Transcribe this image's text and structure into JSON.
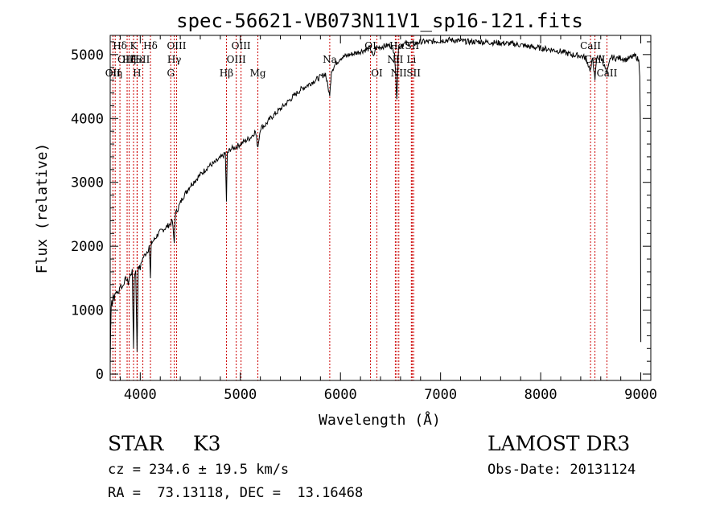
{
  "chart_data": {
    "type": "line",
    "title": "spec-56621-VB073N11V1_sp16-121.fits",
    "xlabel": "Wavelength (Å)",
    "ylabel": "Flux (relative)",
    "xlim": [
      3700,
      9100
    ],
    "ylim": [
      -100,
      5300
    ],
    "xticks": [
      4000,
      5000,
      6000,
      7000,
      8000,
      9000
    ],
    "yticks": [
      0,
      1000,
      2000,
      3000,
      4000,
      5000
    ],
    "xtick_labels": [
      "4000",
      "5000",
      "6000",
      "7000",
      "8000",
      "9000"
    ],
    "ytick_labels": [
      "0",
      "1000",
      "2000",
      "3000",
      "4000",
      "5000"
    ],
    "series": [
      {
        "name": "spectrum",
        "x": [
          3700,
          3705,
          3710,
          3715,
          3720,
          3730,
          3740,
          3760,
          3780,
          3800,
          3820,
          3840,
          3860,
          3880,
          3900,
          3920,
          3933,
          3940,
          3955,
          3968,
          3980,
          4000,
          4020,
          4040,
          4060,
          4080,
          4090,
          4102,
          4110,
          4140,
          4180,
          4220,
          4260,
          4300,
          4320,
          4340,
          4350,
          4380,
          4420,
          4460,
          4500,
          4560,
          4620,
          4680,
          4740,
          4800,
          4850,
          4861,
          4870,
          4900,
          4950,
          5000,
          5050,
          5100,
          5150,
          5175,
          5200,
          5250,
          5300,
          5400,
          5500,
          5600,
          5700,
          5800,
          5850,
          5893,
          5910,
          5950,
          6000,
          6100,
          6200,
          6300,
          6330,
          6350,
          6400,
          6500,
          6540,
          6563,
          6580,
          6600,
          6650,
          6700,
          6750,
          6800,
          6900,
          7000,
          7100,
          7200,
          7300,
          7400,
          7500,
          7600,
          7700,
          7800,
          7900,
          8000,
          8100,
          8200,
          8300,
          8400,
          8450,
          8498,
          8520,
          8542,
          8560,
          8600,
          8620,
          8662,
          8700,
          8750,
          8800,
          8850,
          8900,
          8950,
          8980,
          8990,
          8995,
          9000
        ],
        "values": [
          150,
          700,
          1050,
          1150,
          1100,
          1250,
          1180,
          1300,
          1250,
          1400,
          1350,
          1450,
          1500,
          1420,
          1550,
          1600,
          400,
          1500,
          1650,
          350,
          1700,
          1650,
          1800,
          1850,
          1900,
          1950,
          2000,
          1500,
          2050,
          2100,
          2200,
          2250,
          2300,
          2350,
          2400,
          2050,
          2500,
          2600,
          2750,
          2850,
          2950,
          3050,
          3150,
          3250,
          3300,
          3380,
          3450,
          2700,
          3450,
          3520,
          3550,
          3600,
          3650,
          3700,
          3800,
          3550,
          3850,
          3900,
          4000,
          4150,
          4300,
          4450,
          4550,
          4650,
          4700,
          4350,
          4750,
          4850,
          4950,
          5000,
          5050,
          5100,
          4950,
          5100,
          5120,
          5150,
          5050,
          4300,
          5100,
          5150,
          5170,
          5180,
          5170,
          5200,
          5200,
          5220,
          5230,
          5210,
          5200,
          5200,
          5190,
          5180,
          5170,
          5150,
          5120,
          5100,
          5080,
          5050,
          5000,
          4980,
          4950,
          4750,
          4950,
          4600,
          4950,
          4950,
          4900,
          4700,
          4960,
          4940,
          4950,
          4920,
          4950,
          4980,
          4900,
          4700,
          4000,
          500
        ]
      }
    ],
    "lines": [
      {
        "x": 3727,
        "label": "OII",
        "row": 3
      },
      {
        "x": 3750,
        "label": "Hη",
        "row": 3
      },
      {
        "x": 3797,
        "label": "Hδ",
        "row": 1
      },
      {
        "x": 3869,
        "label": "OIII",
        "row": 2
      },
      {
        "x": 3889,
        "label": "Hζ",
        "row": 2
      },
      {
        "x": 3933,
        "label": "K",
        "row": 1
      },
      {
        "x": 3968,
        "label": "H",
        "row": 3
      },
      {
        "x": 3970,
        "label": "Hε",
        "row": 2
      },
      {
        "x": 4026,
        "label": "SII",
        "row": 2
      },
      {
        "x": 4102,
        "label": "Hδ",
        "row": 1
      },
      {
        "x": 4305,
        "label": "G",
        "row": 3
      },
      {
        "x": 4340,
        "label": "Hγ",
        "row": 2
      },
      {
        "x": 4363,
        "label": "OIII",
        "row": 1
      },
      {
        "x": 4861,
        "label": "Hβ",
        "row": 3
      },
      {
        "x": 4959,
        "label": "OIII",
        "row": 2
      },
      {
        "x": 5007,
        "label": "OIII",
        "row": 1
      },
      {
        "x": 5175,
        "label": "Mg",
        "row": 3
      },
      {
        "x": 5893,
        "label": "Na",
        "row": 2
      },
      {
        "x": 6300,
        "label": "OI",
        "row": 1
      },
      {
        "x": 6364,
        "label": "OI",
        "row": 3
      },
      {
        "x": 6548,
        "label": "NII",
        "row": 2
      },
      {
        "x": 6563,
        "label": "Hα",
        "row": 1
      },
      {
        "x": 6583,
        "label": "NII",
        "row": 3
      },
      {
        "x": 6708,
        "label": "Li",
        "row": 2
      },
      {
        "x": 6716,
        "label": "SII",
        "row": 1
      },
      {
        "x": 6731,
        "label": "SII",
        "row": 3
      },
      {
        "x": 8498,
        "label": "CaII",
        "row": 1
      },
      {
        "x": 8542,
        "label": "CaII",
        "row": 2
      },
      {
        "x": 8662,
        "label": "CaII",
        "row": 3
      }
    ],
    "grid": false
  },
  "info": {
    "class": "STAR",
    "subclass": "K3",
    "survey": "LAMOST DR3",
    "cz": "cz = 234.6 ± 19.5 km/s",
    "obs_date": "Obs-Date: 20131124",
    "coords": "RA =  73.13118, DEC =  13.16468"
  },
  "colors": {
    "line": "#000000",
    "marker": "#cc0000"
  }
}
